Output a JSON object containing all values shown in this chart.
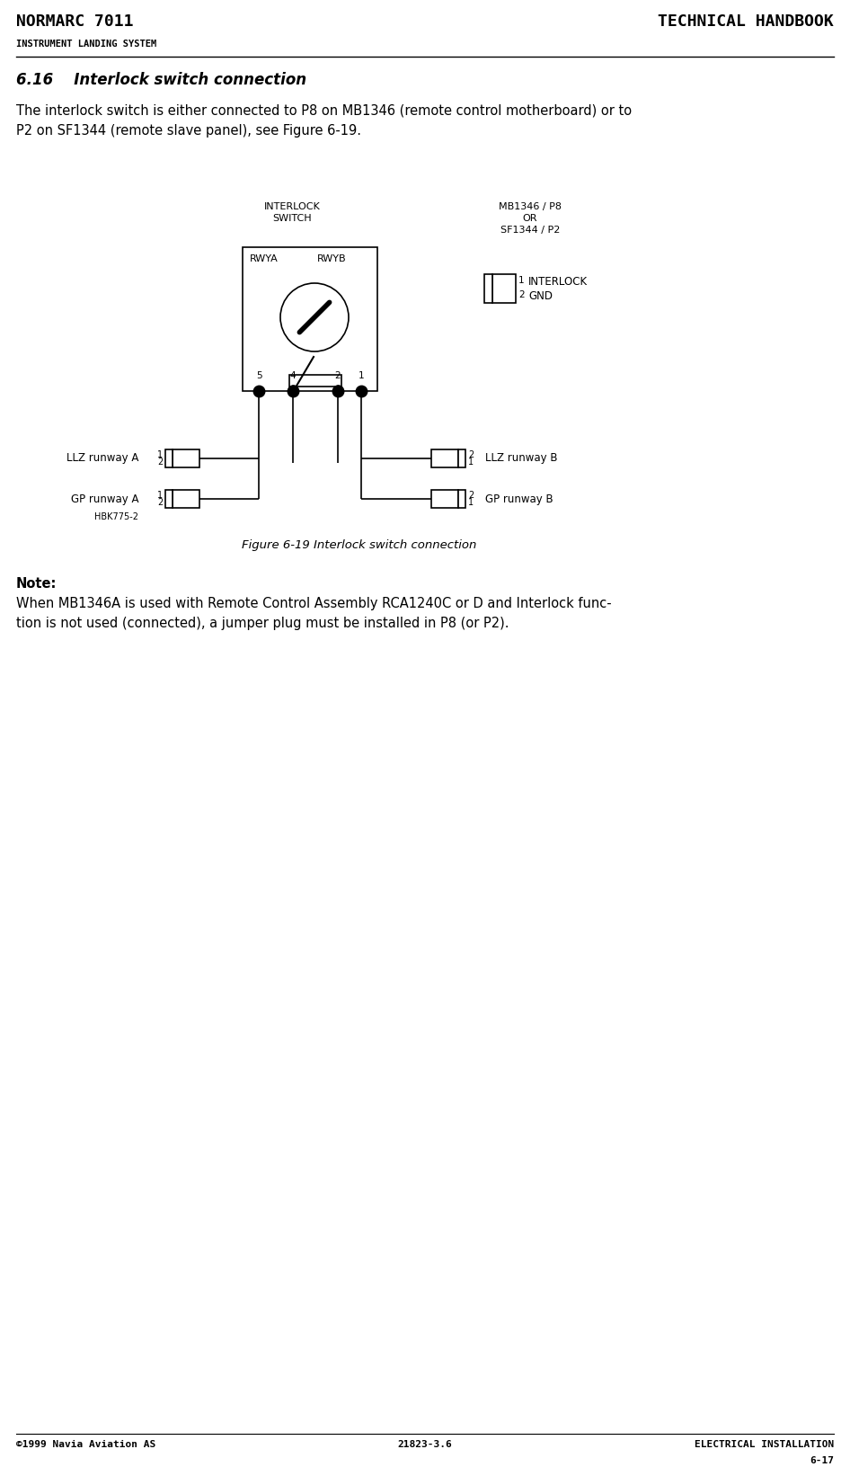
{
  "page_title_left": "NORMARC 7011",
  "page_title_right": "TECHNICAL HANDBOOK",
  "page_subtitle": "INSTRUMENT LANDING SYSTEM",
  "section_title": "6.16    Interlock switch connection",
  "body_text_1": "The interlock switch is either connected to P8 on MB1346 (remote control motherboard) or to",
  "body_text_2": "P2 on SF1344 (remote slave panel), see Figure 6-19.",
  "figure_caption": "Figure 6-19 Interlock switch connection",
  "note_title": "Note:",
  "note_text_1": "When MB1346A is used with Remote Control Assembly RCA1240C or D and Interlock func-",
  "note_text_2": "tion is not used (connected), a jumper plug must be installed in P8 (or P2).",
  "footer_left": "©1999 Navia Aviation AS",
  "footer_center": "21823-3.6",
  "footer_right": "ELECTRICAL INSTALLATION",
  "footer_page": "6-17",
  "bg_color": "#ffffff",
  "text_color": "#000000"
}
